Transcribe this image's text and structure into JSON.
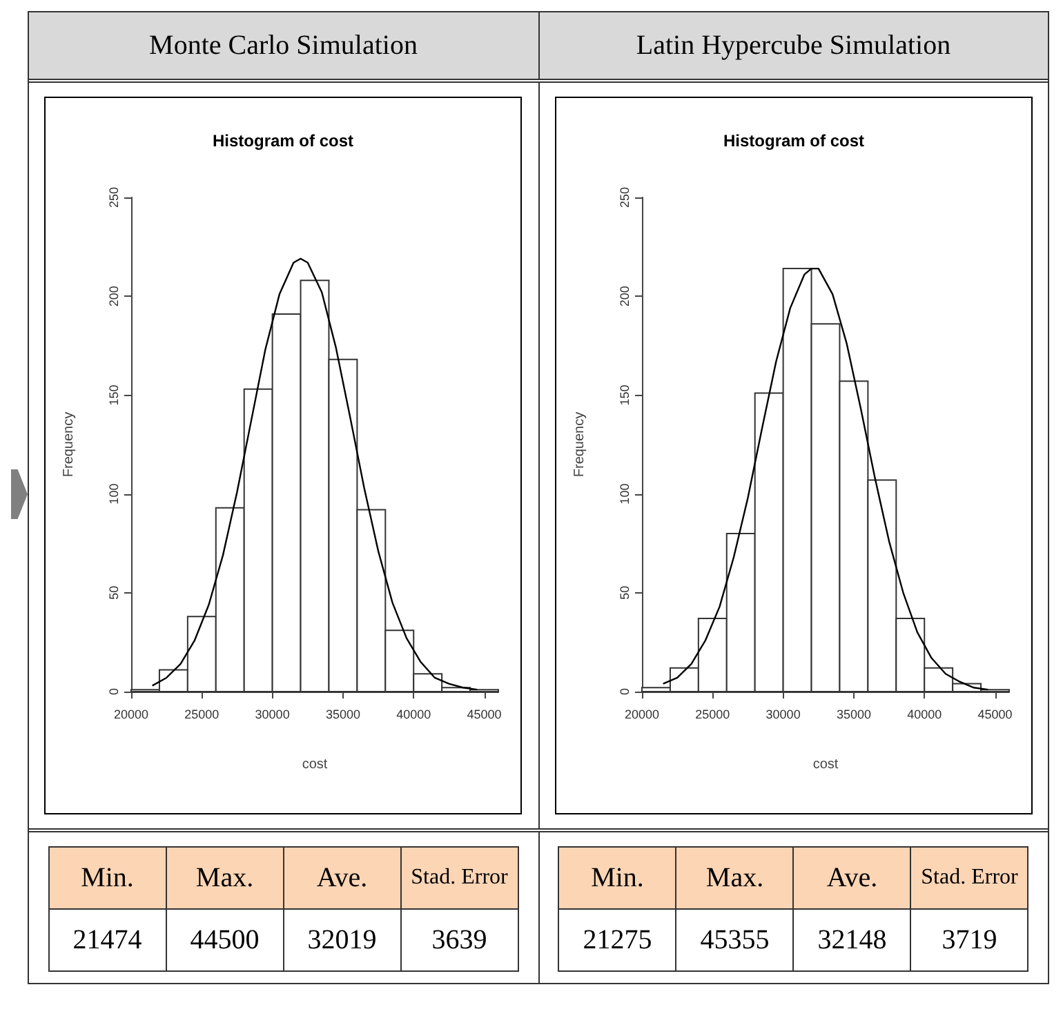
{
  "chart_data": [
    {
      "type": "other",
      "title": "Monte Carlo Simulation"
    },
    {
      "type": "other",
      "title": "Latin Hypercube Simulation"
    },
    {
      "type": "histogram",
      "title": "Histogram of cost",
      "xlabel": "cost",
      "ylabel": "Frequency",
      "bins": [
        20000,
        22000,
        24000,
        26000,
        28000,
        30000,
        32000,
        34000,
        36000,
        38000,
        40000,
        42000,
        44000,
        46000
      ],
      "values": [
        1,
        11,
        38,
        93,
        153,
        191,
        208,
        168,
        92,
        31,
        9,
        2,
        1
      ],
      "xlim": [
        20000,
        46000
      ],
      "xticks": [
        20000,
        25000,
        30000,
        35000,
        40000,
        45000
      ],
      "ylim": [
        0,
        250
      ],
      "yticks": [
        0,
        50,
        100,
        150,
        200,
        250
      ],
      "series": [
        {
          "type": "line",
          "color": "#000000",
          "x": [
            21500,
            22500,
            23500,
            24500,
            25500,
            26500,
            27500,
            28500,
            29500,
            30500,
            31500,
            32000,
            32500,
            33500,
            34500,
            35500,
            36500,
            37500,
            38500,
            39500,
            40500,
            41500,
            42500,
            43500,
            44500
          ],
          "values": [
            3,
            7,
            14,
            26,
            44,
            69,
            101,
            137,
            173,
            201,
            217,
            219,
            217,
            202,
            174,
            139,
            103,
            71,
            45,
            27,
            15,
            7,
            4,
            2,
            1
          ]
        }
      ]
    },
    {
      "type": "histogram",
      "title": "Histogram of cost",
      "xlabel": "cost",
      "ylabel": "Frequency",
      "bins": [
        20000,
        22000,
        24000,
        26000,
        28000,
        30000,
        32000,
        34000,
        36000,
        38000,
        40000,
        42000,
        44000,
        46000
      ],
      "values": [
        2,
        12,
        37,
        80,
        151,
        214,
        186,
        157,
        107,
        37,
        12,
        4,
        1
      ],
      "xlim": [
        20000,
        46000
      ],
      "xticks": [
        20000,
        25000,
        30000,
        35000,
        40000,
        45000
      ],
      "ylim": [
        0,
        250
      ],
      "yticks": [
        0,
        50,
        100,
        150,
        200,
        250
      ],
      "series": [
        {
          "type": "line",
          "color": "#000000",
          "x": [
            21500,
            22500,
            23500,
            24500,
            25500,
            26500,
            27500,
            28500,
            29500,
            30500,
            31500,
            32000,
            32500,
            33500,
            34500,
            35500,
            36500,
            37500,
            38500,
            39500,
            40500,
            41500,
            42500,
            43500,
            44500
          ],
          "values": [
            4,
            7,
            14,
            26,
            43,
            68,
            98,
            133,
            167,
            194,
            211,
            214,
            214,
            201,
            176,
            143,
            108,
            76,
            50,
            30,
            17,
            9,
            5,
            2,
            1
          ]
        }
      ]
    },
    {
      "type": "other",
      "categories": [
        "Min.",
        "Max.",
        "Ave.",
        "Stad. Error"
      ],
      "values": [
        21474,
        44500,
        32019,
        3639
      ],
      "data_labels": true
    },
    {
      "type": "other",
      "categories": [
        "Min.",
        "Max.",
        "Ave.",
        "Stad. Error"
      ],
      "values": [
        21275,
        45355,
        32148,
        3719
      ],
      "data_labels": true
    }
  ]
}
